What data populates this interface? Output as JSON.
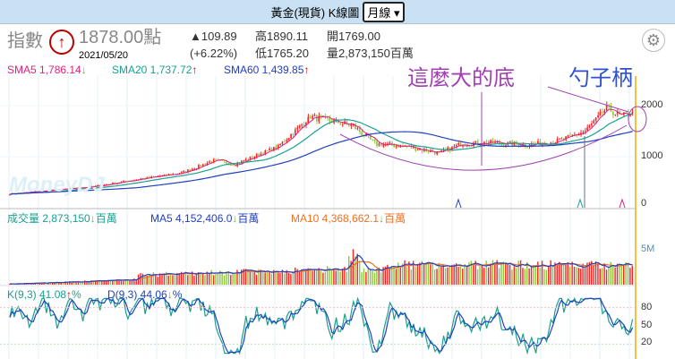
{
  "header": {
    "title": "黃金(現貨) K線圖",
    "period": "月線"
  },
  "info": {
    "label": "指數",
    "price": "1878.00點",
    "date": "2021/05/20",
    "change": "▲109.89",
    "change_pct": "(+6.22%)",
    "high": "高1890.11",
    "low": "低1765.20",
    "open": "開1769.00",
    "volume": "量2,873,150百萬"
  },
  "sma": {
    "sma5": "SMA5 1,786.14",
    "sma20": "SMA20 1,737.72",
    "sma60": "SMA60 1,439.85"
  },
  "vol_legend": {
    "vol": "成交量 2,873,150",
    "unit": "百萬",
    "ma5": "MA5 4,152,406.0",
    "ma10": "MA10 4,368,662.1"
  },
  "kd_legend": {
    "k": "K(9,3) 41.08",
    "d": "D(9,3) 44.06",
    "pct": "%"
  },
  "annotations": {
    "bottom": "這麼大的底",
    "handle": "勺子柄"
  },
  "watermark": "MoneyDJ",
  "colors": {
    "up": "#ff2020",
    "down": "#8cc63f",
    "sma5": "#e0207a",
    "sma20": "#1aa090",
    "sma60": "#2040c0",
    "annot": "#a040b0"
  },
  "chart_data": {
    "type": "candlestick",
    "period": "monthly",
    "x_range": [
      "2001",
      "2021/05"
    ],
    "price_keypoints": [
      [
        0,
        270
      ],
      [
        40,
        420
      ],
      [
        60,
        560
      ],
      [
        80,
        680
      ],
      [
        95,
        930
      ],
      [
        105,
        850
      ],
      [
        125,
        1200
      ],
      [
        140,
        1780
      ],
      [
        150,
        1700
      ],
      [
        160,
        1600
      ],
      [
        170,
        1250
      ],
      [
        185,
        1200
      ],
      [
        200,
        1070
      ],
      [
        210,
        1250
      ],
      [
        225,
        1280
      ],
      [
        240,
        1230
      ],
      [
        255,
        1300
      ],
      [
        268,
        1500
      ],
      [
        278,
        1950
      ],
      [
        285,
        1780
      ],
      [
        290,
        1878
      ]
    ],
    "y_ticks": [
      "2000",
      "1000",
      "0"
    ],
    "vol_ticks": [
      "5M"
    ],
    "kd_ticks": [
      "80",
      "50",
      "20"
    ]
  }
}
